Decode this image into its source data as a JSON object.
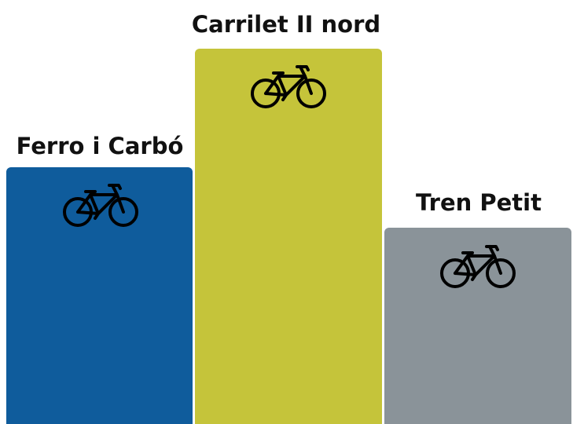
{
  "podium": [
    {
      "label": "Ferro i Carbó"
    },
    {
      "label": "Carrilet II nord"
    },
    {
      "label": "Tren Petit"
    }
  ]
}
